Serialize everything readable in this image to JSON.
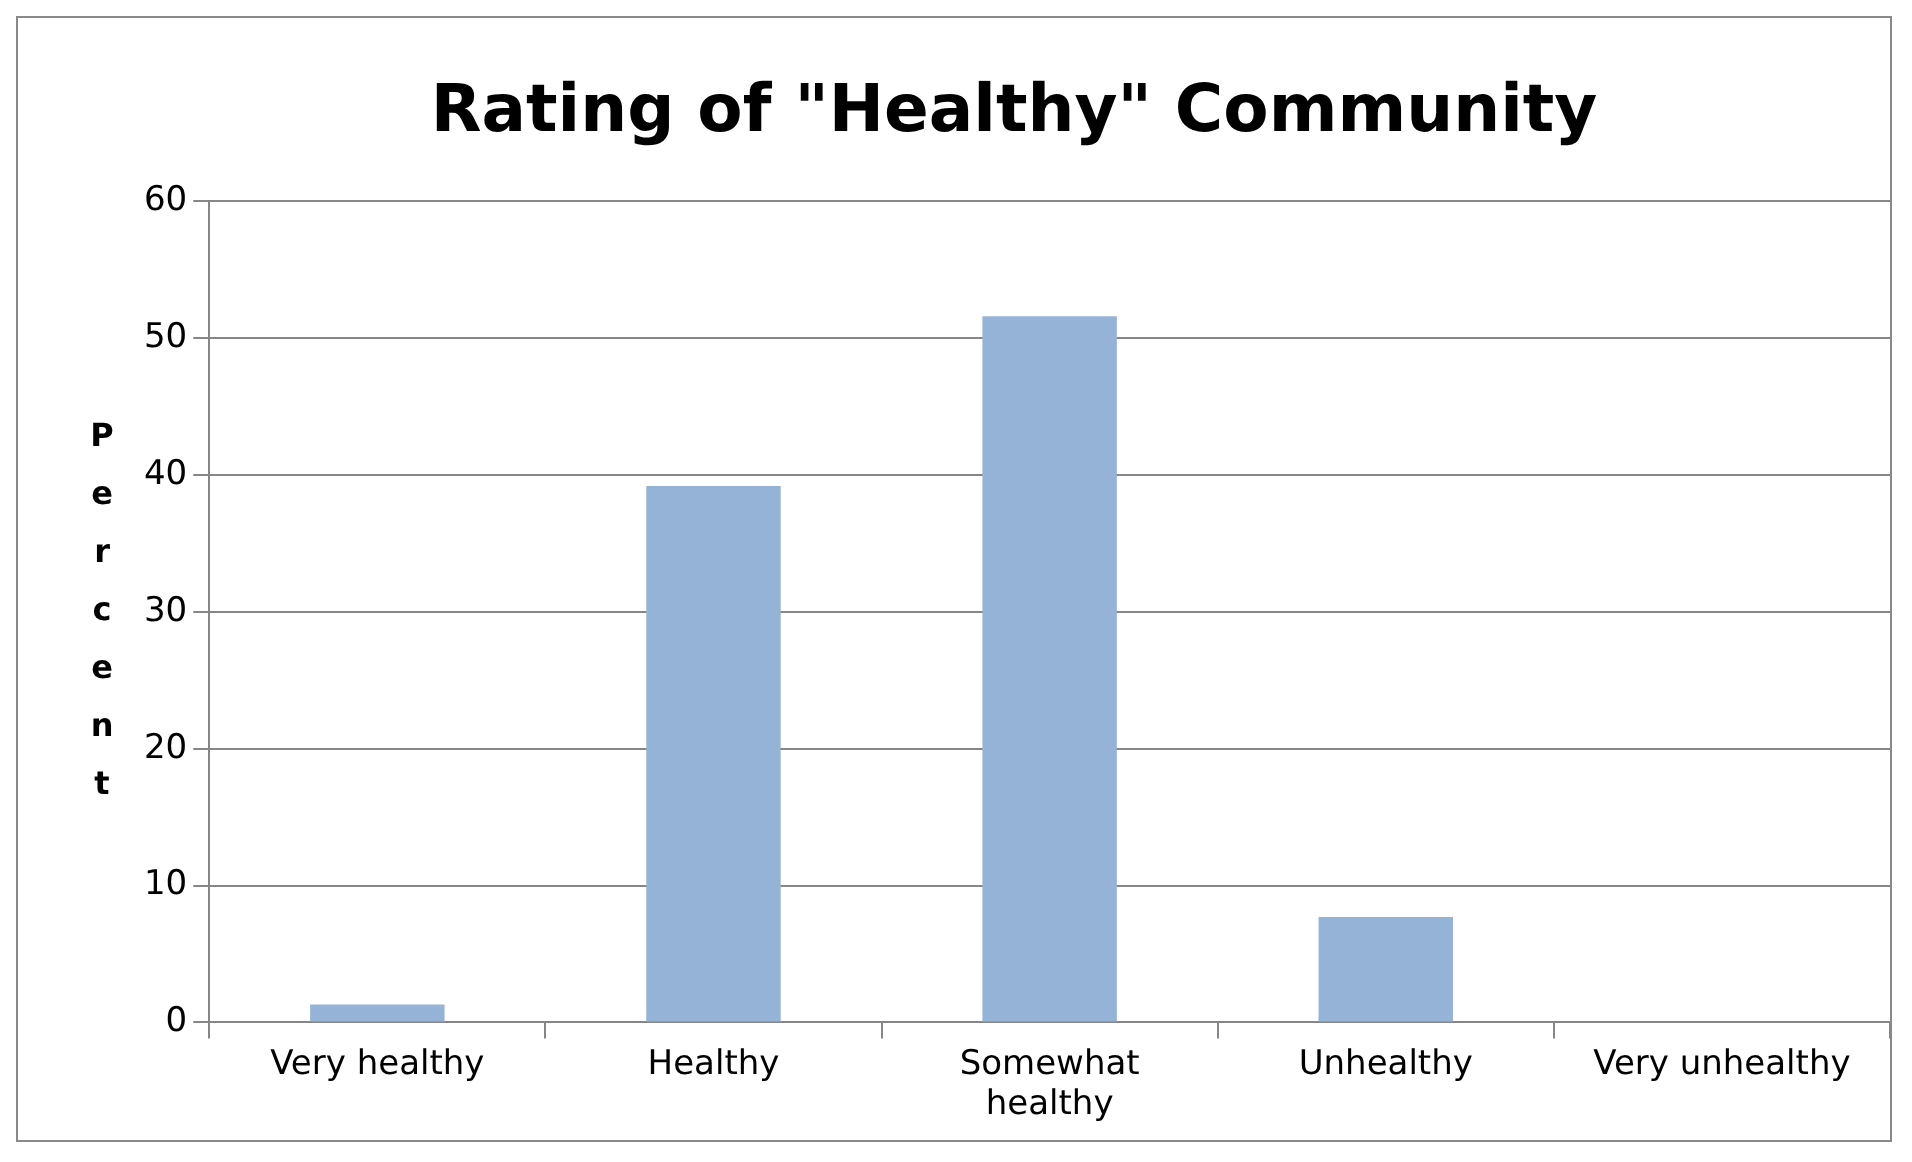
{
  "chart_data": {
    "type": "bar",
    "title": "Rating of \"Healthy\" Community",
    "ylabel": "Percent",
    "categories": [
      "Very healthy",
      "Healthy",
      "Somewhat healthy",
      "Unhealthy",
      "Very unhealthy"
    ],
    "values": [
      1.3,
      39.2,
      51.6,
      7.7,
      0
    ],
    "color": "#95b3d7",
    "ylim": [
      0,
      60
    ],
    "yticks": [
      0,
      10,
      20,
      30,
      40,
      50,
      60
    ],
    "grid": "y",
    "legend": false
  }
}
